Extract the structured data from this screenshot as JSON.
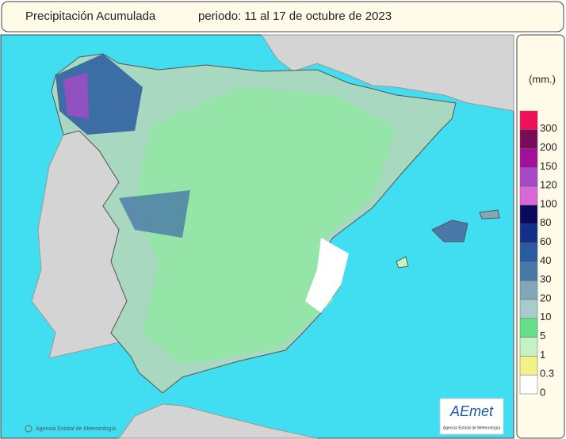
{
  "header": {
    "title": "Precipitación Acumulada",
    "period": "periodo: 11 al 17 de octubre de 2023"
  },
  "legend": {
    "unit": "(mm.)",
    "items": [
      {
        "value": 300,
        "color": "#f0105a"
      },
      {
        "value": 200,
        "color": "#7a0a5a"
      },
      {
        "value": 150,
        "color": "#a0109a"
      },
      {
        "value": 120,
        "color": "#a848c8"
      },
      {
        "value": 100,
        "color": "#d868d8"
      },
      {
        "value": 80,
        "color": "#0a0a5a"
      },
      {
        "value": 60,
        "color": "#10308a"
      },
      {
        "value": 40,
        "color": "#2a5aa0"
      },
      {
        "value": 30,
        "color": "#4a78a8"
      },
      {
        "value": 20,
        "color": "#82a8b8"
      },
      {
        "value": 10,
        "color": "#a8cccc"
      },
      {
        "value": 5,
        "color": "#66e088"
      },
      {
        "value": 1,
        "color": "#c4f2c4"
      },
      {
        "value": 0.3,
        "color": "#f2f288"
      },
      {
        "value": 0,
        "color": "#ffffff"
      }
    ]
  },
  "footer": {
    "credit": "Agencia Estatal de Meteorología",
    "logo": "AEmet",
    "logo_caption": "Agencia Estatal de Meteorología"
  }
}
